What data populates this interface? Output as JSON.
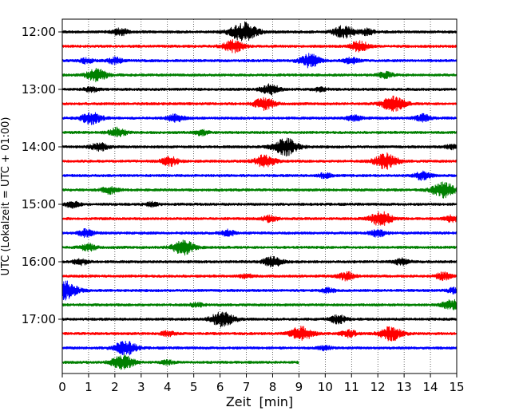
{
  "chart_data": {
    "type": "line",
    "title": "",
    "xlabel": "Zeit  [min]",
    "ylabel": "UTC (Lokalzeit = UTC + 01:00)",
    "xlim": [
      0,
      15
    ],
    "x_ticks": [
      "0",
      "1",
      "2",
      "3",
      "4",
      "5",
      "6",
      "7",
      "8",
      "9",
      "10",
      "11",
      "12",
      "13",
      "14",
      "15"
    ],
    "y_ticks": [
      {
        "label": "12:00",
        "row": 0
      },
      {
        "label": "13:00",
        "row": 4
      },
      {
        "label": "14:00",
        "row": 8
      },
      {
        "label": "15:00",
        "row": 12
      },
      {
        "label": "16:00",
        "row": 16
      },
      {
        "label": "17:00",
        "row": 20
      }
    ],
    "grid": "vertical dotted",
    "colors": [
      "#000000",
      "#ff0000",
      "#0000ff",
      "#008000"
    ],
    "series": [
      {
        "start": "12:00",
        "end_min": 15,
        "events": [
          [
            2.2,
            0.7
          ],
          [
            6.9,
            1.9
          ],
          [
            10.7,
            1.3
          ],
          [
            11.6,
            0.6
          ]
        ]
      },
      {
        "start": "12:15",
        "end_min": 15,
        "events": [
          [
            6.5,
            1.2
          ],
          [
            11.3,
            1.0
          ]
        ]
      },
      {
        "start": "12:30",
        "end_min": 15,
        "events": [
          [
            0.9,
            0.5
          ],
          [
            2.0,
            0.6
          ],
          [
            9.4,
            1.3
          ],
          [
            11.0,
            0.6
          ]
        ]
      },
      {
        "start": "12:45",
        "end_min": 15,
        "events": [
          [
            1.3,
            1.2
          ],
          [
            12.3,
            0.6
          ]
        ]
      },
      {
        "start": "13:00",
        "end_min": 15,
        "events": [
          [
            1.1,
            0.5
          ],
          [
            7.9,
            1.0
          ],
          [
            9.8,
            0.4
          ]
        ]
      },
      {
        "start": "13:15",
        "end_min": 15,
        "events": [
          [
            7.7,
            1.2
          ],
          [
            12.6,
            1.5
          ]
        ]
      },
      {
        "start": "13:30",
        "end_min": 15,
        "events": [
          [
            1.1,
            1.2
          ],
          [
            4.3,
            0.8
          ],
          [
            11.1,
            0.6
          ],
          [
            13.7,
            0.7
          ]
        ]
      },
      {
        "start": "13:45",
        "end_min": 15,
        "events": [
          [
            2.1,
            0.9
          ],
          [
            5.3,
            0.5
          ]
        ]
      },
      {
        "start": "14:00",
        "end_min": 15,
        "events": [
          [
            1.4,
            0.8
          ],
          [
            8.5,
            1.7
          ],
          [
            14.8,
            0.4
          ]
        ]
      },
      {
        "start": "14:15",
        "end_min": 15,
        "events": [
          [
            4.1,
            0.9
          ],
          [
            7.7,
            1.2
          ],
          [
            12.3,
            1.5
          ]
        ]
      },
      {
        "start": "14:30",
        "end_min": 15,
        "events": [
          [
            10.0,
            0.5
          ],
          [
            13.7,
            0.8
          ]
        ]
      },
      {
        "start": "14:45",
        "end_min": 15,
        "events": [
          [
            1.8,
            0.7
          ],
          [
            14.5,
            1.5
          ]
        ]
      },
      {
        "start": "15:00",
        "end_min": 15,
        "events": [
          [
            0.4,
            0.6
          ],
          [
            3.4,
            0.4
          ]
        ]
      },
      {
        "start": "15:15",
        "end_min": 15,
        "events": [
          [
            7.9,
            0.6
          ],
          [
            12.1,
            1.4
          ],
          [
            14.8,
            0.6
          ]
        ]
      },
      {
        "start": "15:30",
        "end_min": 15,
        "events": [
          [
            0.9,
            0.7
          ],
          [
            6.3,
            0.6
          ],
          [
            12.0,
            0.7
          ]
        ]
      },
      {
        "start": "15:45",
        "end_min": 15,
        "events": [
          [
            1.0,
            0.7
          ],
          [
            4.6,
            1.4
          ]
        ]
      },
      {
        "start": "16:00",
        "end_min": 15,
        "events": [
          [
            0.7,
            0.6
          ],
          [
            8.0,
            1.0
          ],
          [
            12.9,
            0.6
          ]
        ]
      },
      {
        "start": "16:15",
        "end_min": 15,
        "events": [
          [
            7.0,
            0.4
          ],
          [
            10.8,
            0.8
          ],
          [
            14.5,
            0.7
          ]
        ]
      },
      {
        "start": "16:30",
        "end_min": 15,
        "events": [
          [
            0.05,
            1.9
          ],
          [
            10.1,
            0.5
          ],
          [
            14.9,
            0.5
          ]
        ]
      },
      {
        "start": "16:45",
        "end_min": 15,
        "events": [
          [
            5.1,
            0.4
          ],
          [
            14.8,
            1.0
          ]
        ]
      },
      {
        "start": "17:00",
        "end_min": 15,
        "events": [
          [
            6.1,
            1.5
          ],
          [
            10.5,
            0.8
          ]
        ]
      },
      {
        "start": "17:15",
        "end_min": 15,
        "events": [
          [
            4.0,
            0.5
          ],
          [
            9.1,
            1.4
          ],
          [
            10.9,
            0.7
          ],
          [
            12.5,
            1.4
          ]
        ]
      },
      {
        "start": "17:30",
        "end_min": 15,
        "events": [
          [
            2.4,
            1.4
          ],
          [
            10.0,
            0.4
          ]
        ]
      },
      {
        "start": "17:45",
        "end_min": 9.0,
        "events": [
          [
            2.3,
            1.4
          ],
          [
            4.0,
            0.4
          ]
        ]
      }
    ]
  }
}
